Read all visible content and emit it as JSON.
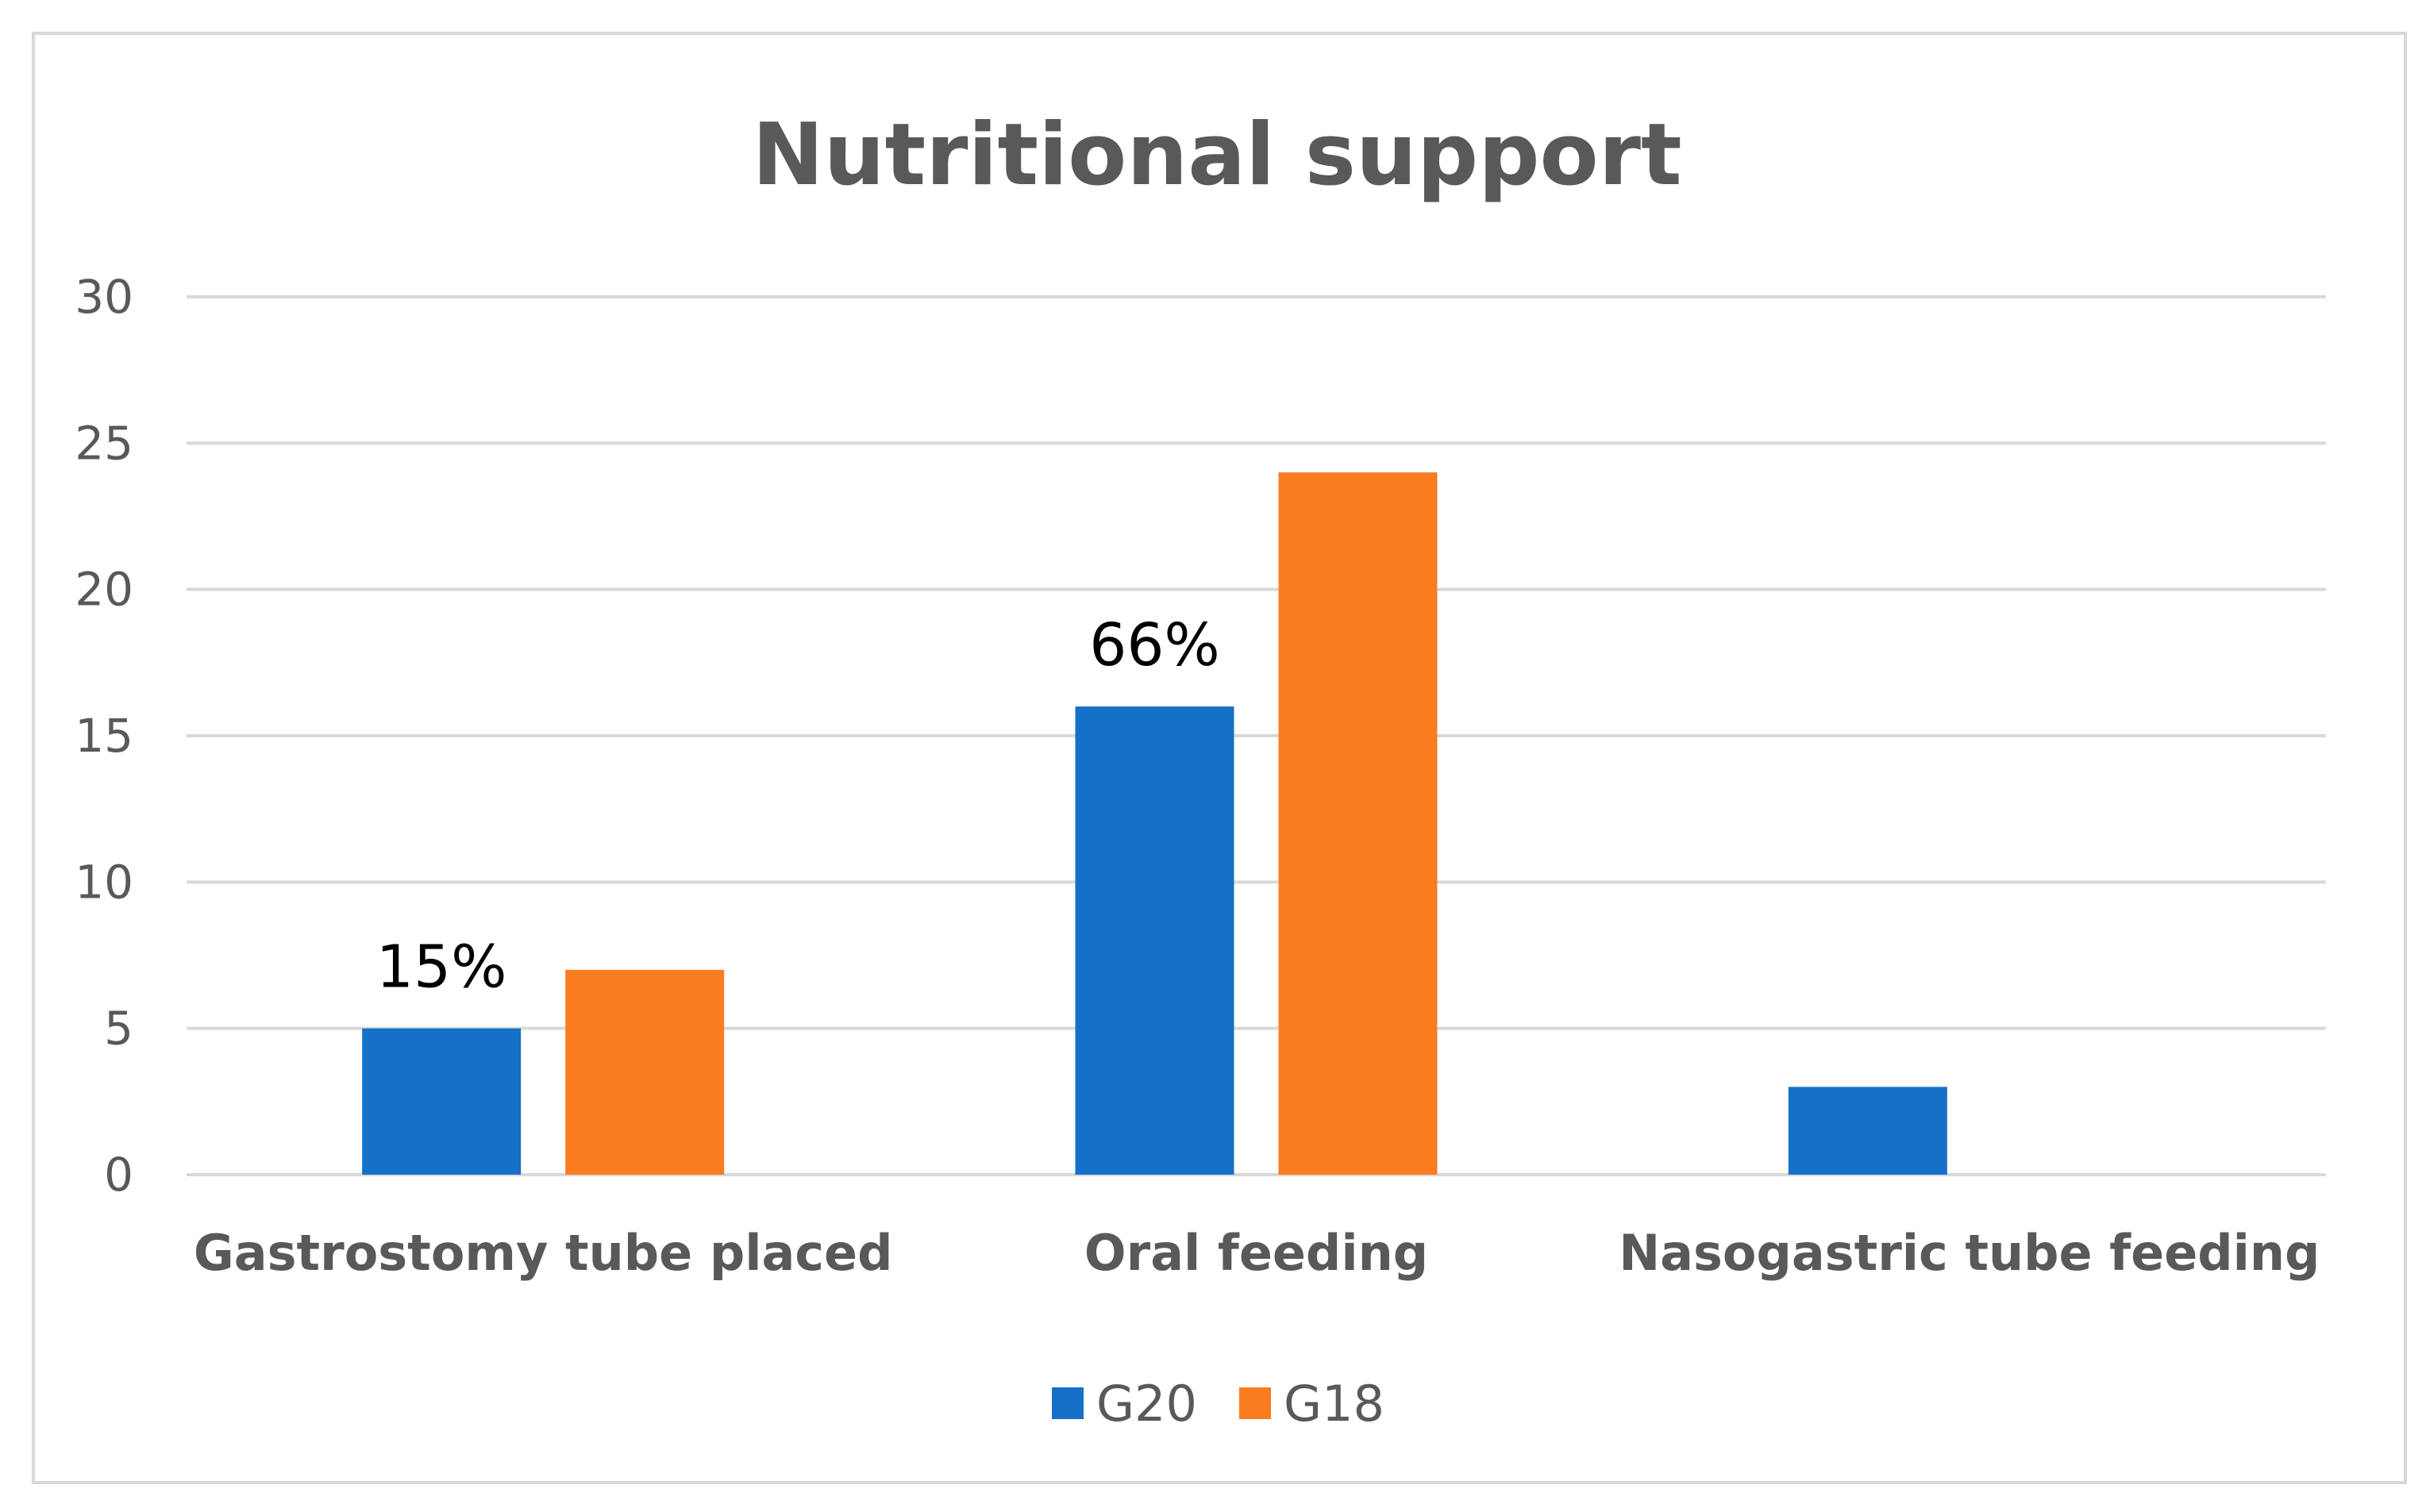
{
  "chart_data": {
    "type": "bar",
    "title": "Nutritional support",
    "categories": [
      "Gastrostomy tube placed",
      "Oral feeding",
      "Nasogastric tube feeding"
    ],
    "series": [
      {
        "name": "G20",
        "color": "#1570c8",
        "values": [
          5,
          16,
          3
        ]
      },
      {
        "name": "G18",
        "color": "#fb7d22",
        "values": [
          7,
          24,
          0
        ]
      }
    ],
    "annotations": [
      {
        "category_index": 0,
        "series_index": 0,
        "text": "15%"
      },
      {
        "category_index": 1,
        "series_index": 0,
        "text": "66%"
      }
    ],
    "yticks": [
      0,
      5,
      10,
      15,
      20,
      25,
      30
    ],
    "ylim": [
      0,
      30
    ],
    "xlabel": "",
    "ylabel": "",
    "grid": true,
    "legend_position": "bottom-center"
  }
}
